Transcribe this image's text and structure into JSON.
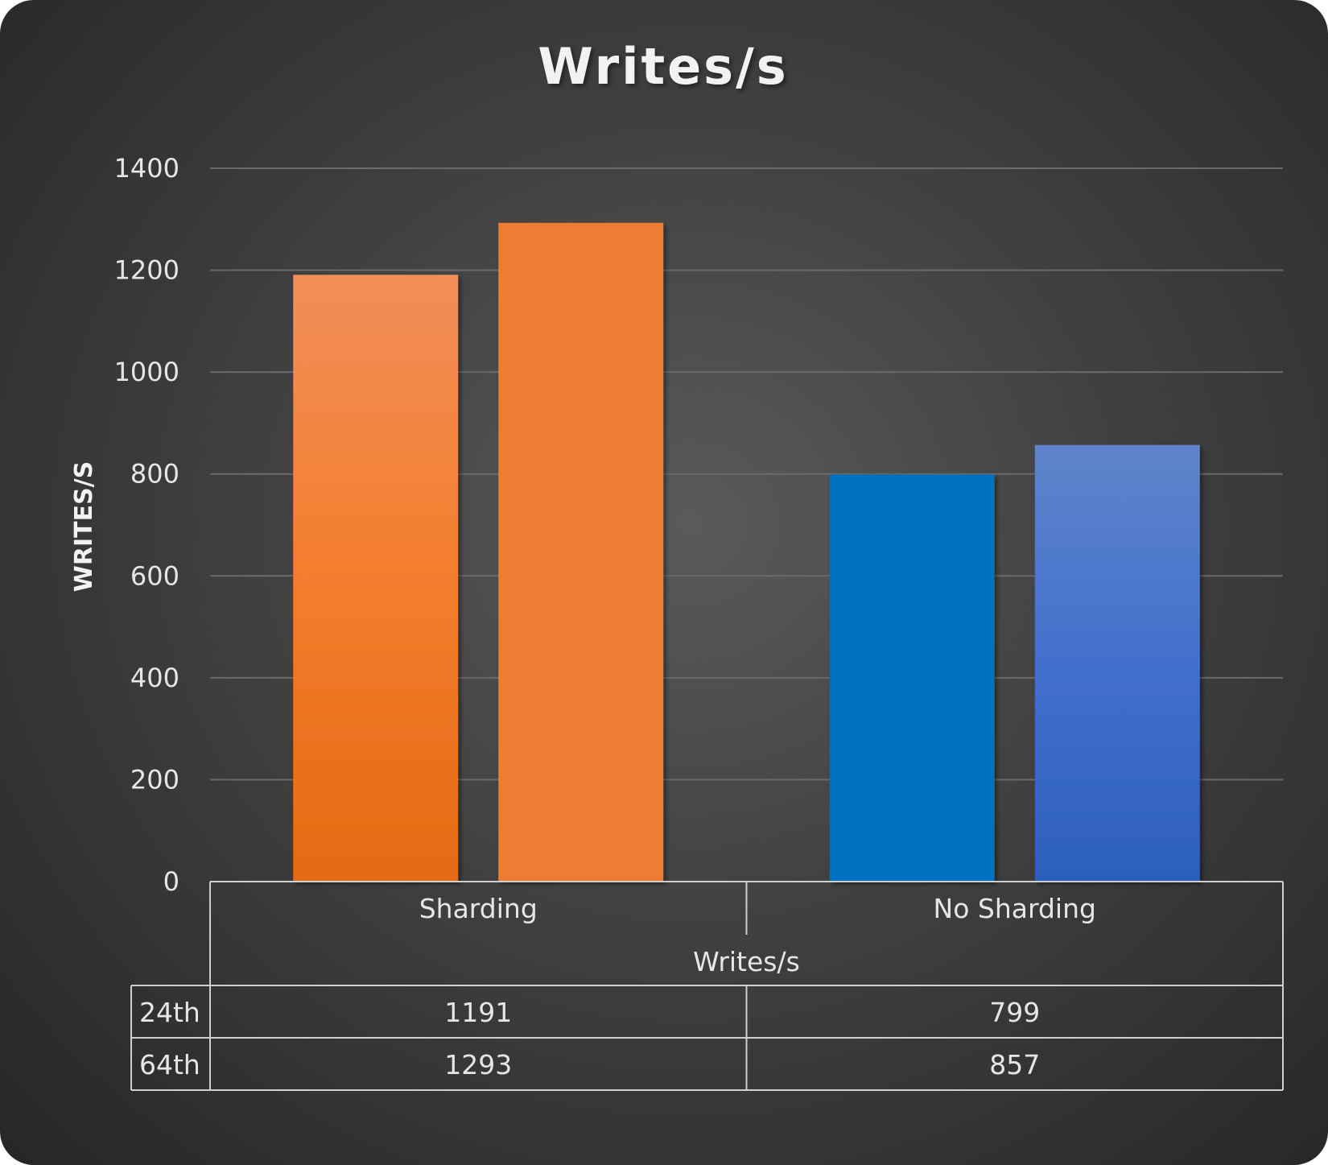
{
  "chart_data": {
    "type": "bar",
    "title": "Writes/s",
    "ylabel": "WRITES/S",
    "xlabel": "Writes/s",
    "categories": [
      "Sharding",
      "No Sharding"
    ],
    "series": [
      {
        "name": "24th",
        "values": [
          1191,
          799
        ],
        "color": "#f07a2a"
      },
      {
        "name": "64th",
        "values": [
          1293,
          857
        ],
        "color": "#ed7d31"
      }
    ],
    "series_colors": {
      "Sharding": [
        "#f07a2a",
        "#ed7d31"
      ],
      "No Sharding": [
        "#0070c0",
        "#4472c4"
      ]
    },
    "ylim": [
      0,
      1400
    ],
    "yticks": [
      0,
      200,
      400,
      600,
      800,
      1000,
      1200,
      1400
    ],
    "grid": true,
    "legend": "data-table below chart"
  }
}
